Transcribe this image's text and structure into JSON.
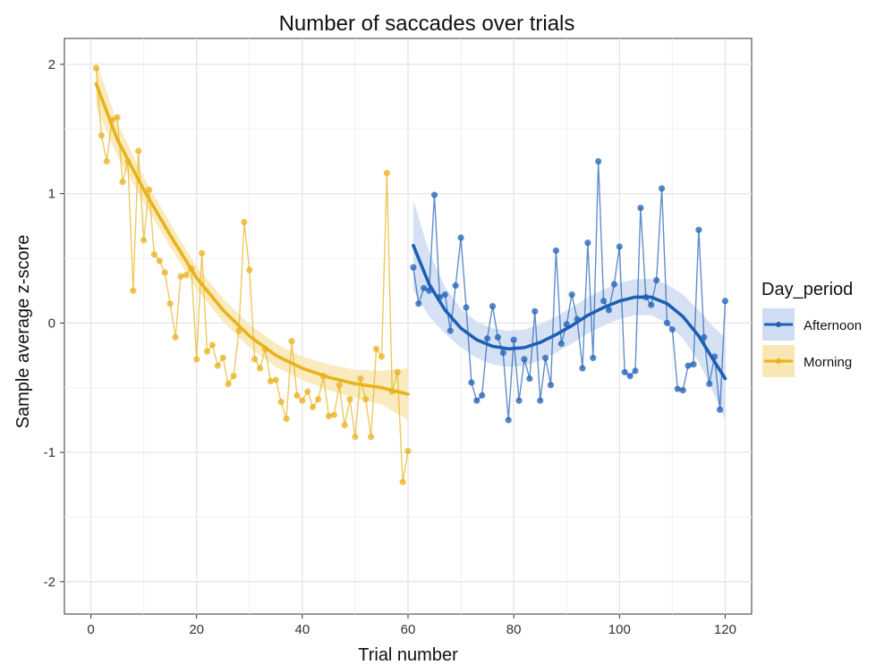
{
  "chart_data": {
    "type": "line",
    "title": "Number of saccades over trials",
    "xlabel": "Trial number",
    "ylabel": "Sample average z-score",
    "xlim": [
      -5,
      125
    ],
    "ylim": [
      -2.25,
      2.2
    ],
    "x_ticks": [
      0,
      20,
      40,
      60,
      80,
      100,
      120
    ],
    "x_tick_labels": [
      "0",
      "20",
      "40",
      "60",
      "80",
      "100",
      "120"
    ],
    "y_ticks": [
      -2,
      -1,
      0,
      1,
      2
    ],
    "y_tick_labels": [
      "-2",
      "-1",
      "0",
      "1",
      "2"
    ],
    "grid": true,
    "legend": {
      "title": "Day_period",
      "position": "right"
    },
    "series": [
      {
        "name": "Morning",
        "color": "#E8B21B",
        "x": [
          1,
          2,
          3,
          4,
          5,
          6,
          7,
          8,
          9,
          10,
          11,
          12,
          13,
          14,
          15,
          16,
          17,
          18,
          19,
          20,
          21,
          22,
          23,
          24,
          25,
          26,
          27,
          28,
          29,
          30,
          31,
          32,
          33,
          34,
          35,
          36,
          37,
          38,
          39,
          40,
          41,
          42,
          43,
          44,
          45,
          46,
          47,
          48,
          49,
          50,
          51,
          52,
          53,
          54,
          55,
          56,
          57,
          58,
          59,
          60
        ],
        "y": [
          1.97,
          1.45,
          1.25,
          1.57,
          1.59,
          1.09,
          1.25,
          0.25,
          1.33,
          0.64,
          1.03,
          0.53,
          0.48,
          0.39,
          0.15,
          -0.11,
          0.36,
          0.37,
          0.42,
          -0.28,
          0.54,
          -0.22,
          -0.17,
          -0.33,
          -0.27,
          -0.47,
          -0.41,
          -0.06,
          0.78,
          0.41,
          -0.28,
          -0.35,
          -0.2,
          -0.45,
          -0.44,
          -0.61,
          -0.74,
          -0.14,
          -0.56,
          -0.6,
          -0.53,
          -0.65,
          -0.59,
          -0.41,
          -0.72,
          -0.71,
          -0.48,
          -0.79,
          -0.59,
          -0.88,
          -0.43,
          -0.59,
          -0.88,
          -0.2,
          -0.26,
          1.16,
          -0.53,
          -0.38,
          -1.23,
          -0.99
        ],
        "smooth_x": [
          1,
          5,
          10,
          15,
          20,
          25,
          30,
          35,
          40,
          45,
          50,
          55,
          60
        ],
        "smooth_y": [
          1.85,
          1.42,
          1.03,
          0.68,
          0.35,
          0.1,
          -0.1,
          -0.25,
          -0.35,
          -0.42,
          -0.47,
          -0.5,
          -0.55
        ],
        "band_halfwidth": [
          0.18,
          0.13,
          0.1,
          0.09,
          0.09,
          0.09,
          0.09,
          0.09,
          0.09,
          0.1,
          0.11,
          0.13,
          0.2
        ]
      },
      {
        "name": "Afternoon",
        "color": "#1E5FB5",
        "x": [
          61,
          62,
          63,
          64,
          65,
          66,
          67,
          68,
          69,
          70,
          71,
          72,
          73,
          74,
          75,
          76,
          77,
          78,
          79,
          80,
          81,
          82,
          83,
          84,
          85,
          86,
          87,
          88,
          89,
          90,
          91,
          92,
          93,
          94,
          95,
          96,
          97,
          98,
          99,
          100,
          101,
          102,
          103,
          104,
          105,
          106,
          107,
          108,
          109,
          110,
          111,
          112,
          113,
          114,
          115,
          116,
          117,
          118,
          119,
          120
        ],
        "y": [
          0.43,
          0.15,
          0.27,
          0.25,
          0.99,
          0.2,
          0.22,
          -0.06,
          0.29,
          0.66,
          0.12,
          -0.46,
          -0.6,
          -0.56,
          -0.12,
          0.13,
          -0.11,
          -0.23,
          -0.75,
          -0.13,
          -0.6,
          -0.28,
          -0.43,
          0.09,
          -0.6,
          -0.27,
          -0.48,
          0.56,
          -0.16,
          -0.01,
          0.22,
          0.03,
          -0.35,
          0.62,
          -0.27,
          1.25,
          0.17,
          0.1,
          0.3,
          0.59,
          -0.38,
          -0.41,
          -0.37,
          0.89,
          0.2,
          0.14,
          0.33,
          1.04,
          0.0,
          -0.05,
          -0.51,
          -0.52,
          -0.33,
          -0.32,
          0.72,
          -0.11,
          -0.47,
          -0.26,
          -0.67,
          0.17
        ],
        "smooth_x": [
          61,
          64,
          67,
          70,
          73,
          76,
          79,
          82,
          85,
          88,
          91,
          94,
          97,
          100,
          103,
          106,
          109,
          112,
          115,
          118,
          120
        ],
        "smooth_y": [
          0.6,
          0.3,
          0.1,
          -0.04,
          -0.13,
          -0.18,
          -0.2,
          -0.19,
          -0.15,
          -0.09,
          -0.02,
          0.06,
          0.12,
          0.17,
          0.2,
          0.2,
          0.15,
          0.05,
          -0.1,
          -0.3,
          -0.43
        ],
        "band_halfwidth": [
          0.35,
          0.25,
          0.18,
          0.15,
          0.14,
          0.14,
          0.14,
          0.14,
          0.14,
          0.14,
          0.14,
          0.14,
          0.14,
          0.14,
          0.14,
          0.14,
          0.15,
          0.17,
          0.2,
          0.26,
          0.32
        ]
      }
    ]
  }
}
